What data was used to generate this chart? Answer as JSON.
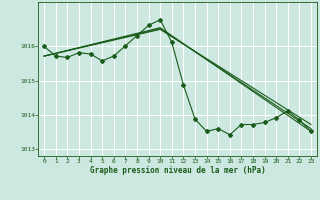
{
  "title": "Graphe pression niveau de la mer (hPa)",
  "bg_color": "#cce8e0",
  "grid_color": "#ffffff",
  "line_color": "#1a5c1a",
  "xlim": [
    -0.5,
    23.5
  ],
  "ylim": [
    1012.8,
    1017.3
  ],
  "yticks": [
    1013,
    1014,
    1015,
    1016
  ],
  "ytick_labels": [
    "1013",
    "1014",
    "1015",
    "1016"
  ],
  "xticks": [
    0,
    1,
    2,
    3,
    4,
    5,
    6,
    7,
    8,
    9,
    10,
    11,
    12,
    13,
    14,
    15,
    16,
    17,
    18,
    19,
    20,
    21,
    22,
    23
  ],
  "series1": {
    "x": [
      0,
      1,
      2,
      3,
      4,
      5,
      6,
      7,
      8,
      9,
      10,
      11,
      12,
      13,
      14,
      15,
      16,
      17,
      18,
      19,
      20,
      21,
      22,
      23
    ],
    "y": [
      1016.0,
      1015.72,
      1015.68,
      1015.82,
      1015.78,
      1015.58,
      1015.72,
      1016.02,
      1016.32,
      1016.62,
      1016.78,
      1016.12,
      1014.88,
      1013.88,
      1013.52,
      1013.6,
      1013.42,
      1013.72,
      1013.72,
      1013.78,
      1013.92,
      1014.12,
      1013.85,
      1013.52
    ]
  },
  "series2": {
    "x": [
      0,
      10,
      23
    ],
    "y": [
      1015.72,
      1016.55,
      1013.52
    ]
  },
  "series3": {
    "x": [
      0,
      10,
      23
    ],
    "y": [
      1015.72,
      1016.52,
      1013.6
    ]
  },
  "series4": {
    "x": [
      0,
      10,
      23
    ],
    "y": [
      1015.72,
      1016.5,
      1013.72
    ]
  }
}
